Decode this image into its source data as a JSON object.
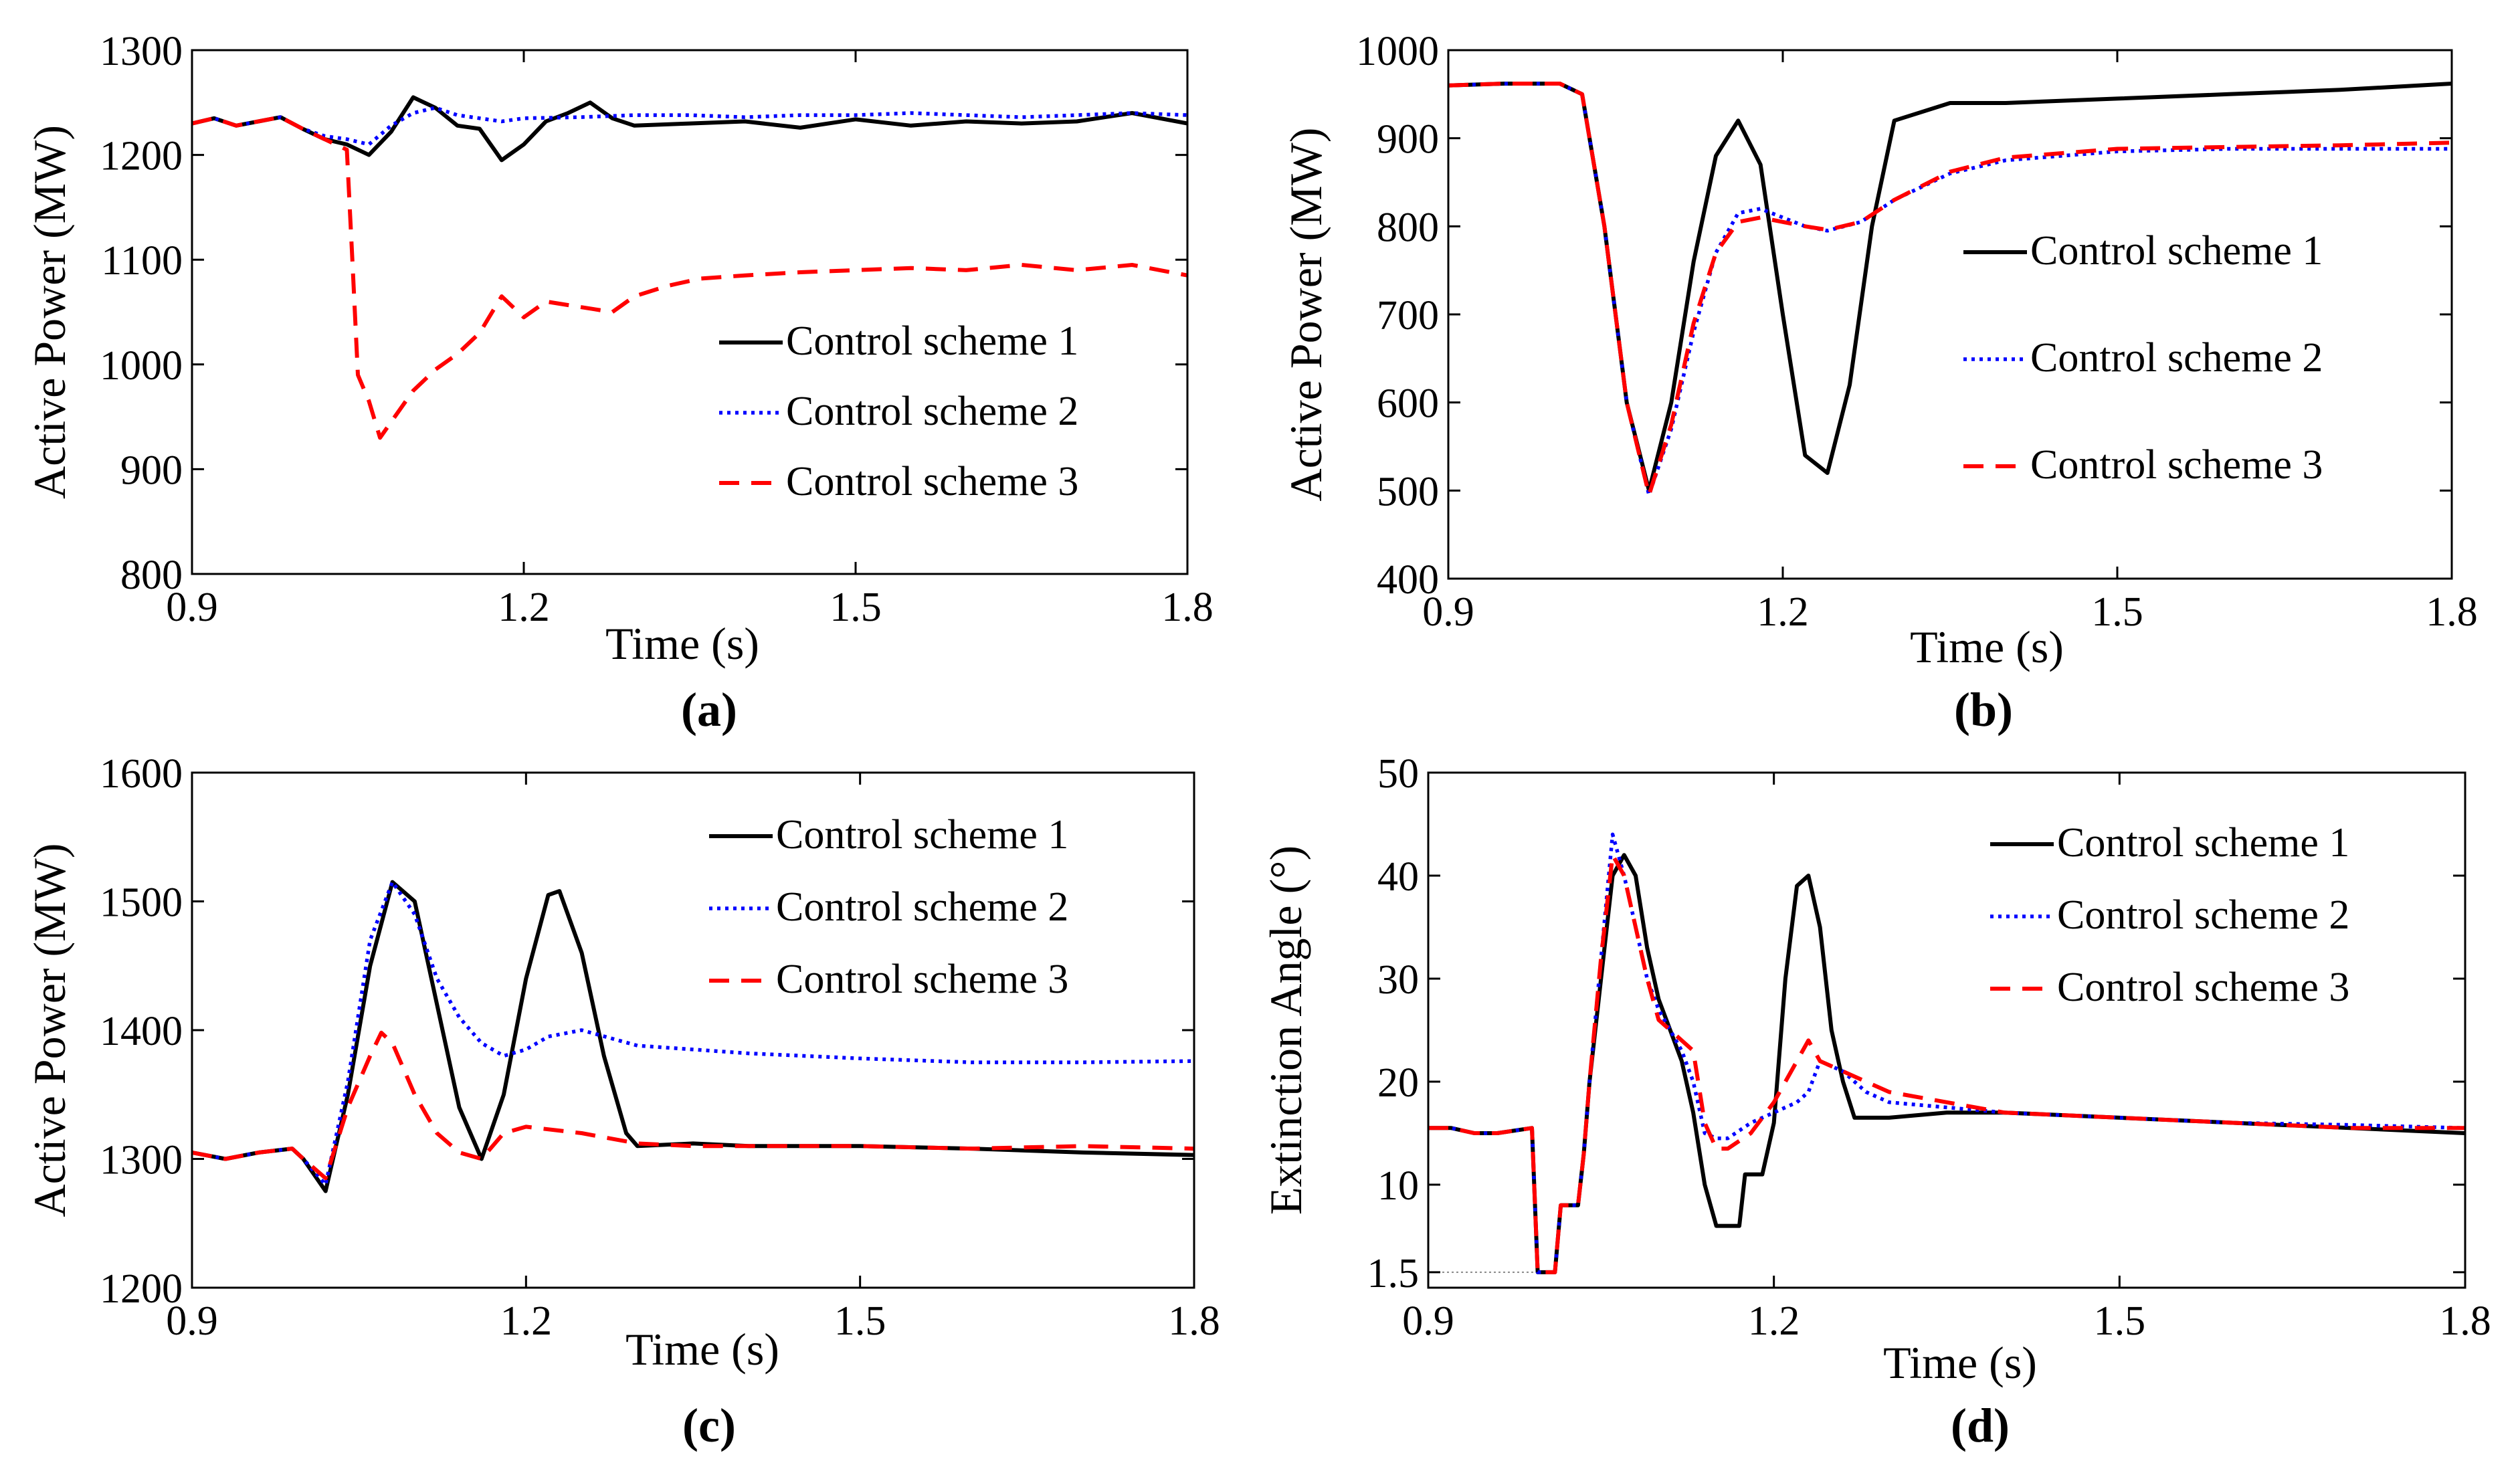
{
  "chart_data": [
    {
      "type": "line",
      "panel": "(a)",
      "xlabel": "Time (s)",
      "ylabel": "Active Power (MW)",
      "xlim": [
        0.9,
        1.8
      ],
      "ylim": [
        800,
        1300
      ],
      "xticks": [
        0.9,
        1.2,
        1.5,
        1.8
      ],
      "yticks": [
        800,
        900,
        1000,
        1100,
        1200,
        1300
      ],
      "legend_position": "right",
      "series": [
        {
          "name": "Control scheme 1",
          "color": "#000000",
          "style": "solid",
          "x": [
            0.9,
            0.92,
            0.94,
            0.96,
            0.98,
            1.0,
            1.02,
            1.04,
            1.06,
            1.08,
            1.1,
            1.12,
            1.14,
            1.16,
            1.18,
            1.2,
            1.22,
            1.24,
            1.26,
            1.28,
            1.3,
            1.35,
            1.4,
            1.45,
            1.5,
            1.55,
            1.6,
            1.65,
            1.7,
            1.75,
            1.8
          ],
          "y": [
            1230,
            1235,
            1228,
            1232,
            1236,
            1225,
            1215,
            1210,
            1200,
            1222,
            1255,
            1245,
            1228,
            1225,
            1195,
            1210,
            1232,
            1240,
            1250,
            1235,
            1228,
            1230,
            1232,
            1226,
            1234,
            1228,
            1232,
            1230,
            1232,
            1240,
            1230
          ]
        },
        {
          "name": "Control scheme 2",
          "color": "#0000ff",
          "style": "dotted",
          "x": [
            0.9,
            0.92,
            0.94,
            0.96,
            0.98,
            1.0,
            1.02,
            1.04,
            1.06,
            1.08,
            1.1,
            1.12,
            1.14,
            1.16,
            1.18,
            1.2,
            1.25,
            1.3,
            1.35,
            1.4,
            1.45,
            1.5,
            1.55,
            1.6,
            1.65,
            1.7,
            1.75,
            1.8
          ],
          "y": [
            1230,
            1235,
            1228,
            1232,
            1236,
            1225,
            1218,
            1215,
            1210,
            1228,
            1240,
            1245,
            1238,
            1235,
            1232,
            1235,
            1236,
            1238,
            1238,
            1236,
            1238,
            1238,
            1240,
            1238,
            1236,
            1238,
            1240,
            1238
          ]
        },
        {
          "name": "Control scheme 3",
          "color": "#ff0000",
          "style": "dashed",
          "x": [
            0.9,
            0.92,
            0.94,
            0.96,
            0.98,
            1.0,
            1.02,
            1.04,
            1.045,
            1.05,
            1.06,
            1.07,
            1.08,
            1.1,
            1.12,
            1.14,
            1.16,
            1.18,
            1.2,
            1.22,
            1.25,
            1.28,
            1.3,
            1.33,
            1.36,
            1.4,
            1.45,
            1.5,
            1.55,
            1.6,
            1.65,
            1.7,
            1.75,
            1.8
          ],
          "y": [
            1230,
            1235,
            1228,
            1232,
            1236,
            1225,
            1215,
            1205,
            1100,
            990,
            965,
            930,
            945,
            975,
            995,
            1010,
            1030,
            1065,
            1045,
            1060,
            1055,
            1050,
            1065,
            1075,
            1082,
            1085,
            1088,
            1090,
            1092,
            1090,
            1095,
            1090,
            1095,
            1085
          ]
        }
      ]
    },
    {
      "type": "line",
      "panel": "(b)",
      "xlabel": "Time (s)",
      "ylabel": "Active Power (MW)",
      "xlim": [
        0.9,
        1.8
      ],
      "ylim": [
        400,
        1000
      ],
      "xticks": [
        0.9,
        1.2,
        1.5,
        1.8
      ],
      "yticks": [
        400,
        500,
        600,
        700,
        800,
        900,
        1000
      ],
      "legend_position": "right",
      "series": [
        {
          "name": "Control scheme 1",
          "color": "#000000",
          "style": "solid",
          "x": [
            0.9,
            0.95,
            1.0,
            1.02,
            1.04,
            1.06,
            1.08,
            1.1,
            1.12,
            1.14,
            1.16,
            1.18,
            1.2,
            1.22,
            1.24,
            1.26,
            1.28,
            1.3,
            1.35,
            1.4,
            1.5,
            1.6,
            1.7,
            1.8
          ],
          "y": [
            960,
            962,
            962,
            950,
            800,
            600,
            500,
            600,
            760,
            880,
            920,
            870,
            700,
            540,
            520,
            620,
            800,
            920,
            940,
            940,
            945,
            950,
            955,
            962
          ]
        },
        {
          "name": "Control scheme 2",
          "color": "#0000ff",
          "style": "dotted",
          "x": [
            0.9,
            0.95,
            1.0,
            1.02,
            1.04,
            1.06,
            1.08,
            1.1,
            1.12,
            1.14,
            1.16,
            1.18,
            1.2,
            1.22,
            1.24,
            1.27,
            1.3,
            1.35,
            1.4,
            1.5,
            1.6,
            1.7,
            1.8
          ],
          "y": [
            960,
            962,
            962,
            950,
            800,
            600,
            495,
            570,
            680,
            770,
            815,
            820,
            810,
            800,
            795,
            805,
            830,
            860,
            875,
            885,
            888,
            888,
            888
          ]
        },
        {
          "name": "Control scheme 3",
          "color": "#ff0000",
          "style": "dashed",
          "x": [
            0.9,
            0.95,
            1.0,
            1.02,
            1.04,
            1.06,
            1.08,
            1.1,
            1.12,
            1.14,
            1.16,
            1.18,
            1.2,
            1.22,
            1.24,
            1.27,
            1.3,
            1.35,
            1.4,
            1.5,
            1.6,
            1.7,
            1.8
          ],
          "y": [
            960,
            962,
            962,
            950,
            800,
            600,
            495,
            575,
            690,
            770,
            805,
            810,
            805,
            800,
            796,
            805,
            830,
            862,
            878,
            888,
            890,
            892,
            895
          ]
        }
      ]
    },
    {
      "type": "line",
      "panel": "(c)",
      "xlabel": "Time (s)",
      "ylabel": "Active Power (MW)",
      "xlim": [
        0.9,
        1.8
      ],
      "ylim": [
        1200,
        1600
      ],
      "xticks": [
        0.9,
        1.2,
        1.5,
        1.8
      ],
      "yticks": [
        1200,
        1300,
        1400,
        1500,
        1600
      ],
      "legend_position": "top-right",
      "series": [
        {
          "name": "Control scheme 1",
          "color": "#000000",
          "style": "solid",
          "x": [
            0.9,
            0.93,
            0.96,
            0.99,
            1.0,
            1.02,
            1.04,
            1.06,
            1.08,
            1.1,
            1.12,
            1.14,
            1.16,
            1.18,
            1.2,
            1.22,
            1.23,
            1.25,
            1.27,
            1.29,
            1.3,
            1.35,
            1.4,
            1.5,
            1.6,
            1.7,
            1.8
          ],
          "y": [
            1305,
            1300,
            1305,
            1308,
            1300,
            1275,
            1350,
            1450,
            1515,
            1500,
            1420,
            1340,
            1300,
            1350,
            1440,
            1505,
            1508,
            1460,
            1380,
            1320,
            1310,
            1312,
            1310,
            1310,
            1308,
            1305,
            1303
          ]
        },
        {
          "name": "Control scheme 2",
          "color": "#0000ff",
          "style": "dotted",
          "x": [
            0.9,
            0.93,
            0.96,
            0.99,
            1.0,
            1.02,
            1.04,
            1.06,
            1.08,
            1.1,
            1.12,
            1.14,
            1.16,
            1.18,
            1.2,
            1.22,
            1.25,
            1.3,
            1.35,
            1.4,
            1.5,
            1.6,
            1.7,
            1.8
          ],
          "y": [
            1305,
            1300,
            1305,
            1308,
            1300,
            1280,
            1360,
            1470,
            1515,
            1490,
            1440,
            1410,
            1390,
            1380,
            1385,
            1395,
            1400,
            1388,
            1385,
            1382,
            1378,
            1375,
            1375,
            1376
          ]
        },
        {
          "name": "Control scheme 3",
          "color": "#ff0000",
          "style": "dashed",
          "x": [
            0.9,
            0.93,
            0.96,
            0.99,
            1.0,
            1.02,
            1.04,
            1.06,
            1.07,
            1.08,
            1.1,
            1.12,
            1.14,
            1.16,
            1.18,
            1.2,
            1.25,
            1.3,
            1.35,
            1.4,
            1.5,
            1.6,
            1.7,
            1.8
          ],
          "y": [
            1305,
            1300,
            1305,
            1308,
            1300,
            1285,
            1340,
            1380,
            1398,
            1390,
            1350,
            1320,
            1305,
            1300,
            1320,
            1325,
            1320,
            1312,
            1310,
            1310,
            1310,
            1308,
            1310,
            1308
          ]
        }
      ]
    },
    {
      "type": "line",
      "panel": "(d)",
      "xlabel": "Time (s)",
      "ylabel": "Extinction Angle (°)",
      "xlim": [
        0.9,
        1.8
      ],
      "ylim": [
        0,
        50
      ],
      "xticks": [
        0.9,
        1.2,
        1.5,
        1.8
      ],
      "yticks": [
        1.5,
        10,
        20,
        30,
        40,
        50
      ],
      "legend_position": "top-right",
      "series": [
        {
          "name": "Control scheme 1",
          "color": "#000000",
          "style": "solid",
          "x": [
            0.9,
            0.92,
            0.94,
            0.96,
            0.99,
            0.995,
            1.01,
            1.015,
            1.03,
            1.035,
            1.04,
            1.05,
            1.06,
            1.07,
            1.08,
            1.09,
            1.1,
            1.11,
            1.12,
            1.13,
            1.14,
            1.15,
            1.17,
            1.175,
            1.19,
            1.2,
            1.21,
            1.22,
            1.23,
            1.24,
            1.25,
            1.26,
            1.27,
            1.3,
            1.35,
            1.4,
            1.5,
            1.6,
            1.7,
            1.8
          ],
          "y": [
            15.5,
            15.5,
            15,
            15,
            15.5,
            1.5,
            1.5,
            8,
            8,
            13,
            20,
            30,
            40,
            42,
            40,
            33,
            28,
            25,
            22,
            17,
            10,
            6,
            6,
            11,
            11,
            16,
            30,
            39,
            40,
            35,
            25,
            20,
            16.5,
            16.5,
            17,
            17,
            16.5,
            16,
            15.5,
            15
          ]
        },
        {
          "name": "Control scheme 2",
          "color": "#0000ff",
          "style": "dotted",
          "x": [
            0.9,
            0.92,
            0.94,
            0.96,
            0.99,
            0.995,
            1.01,
            1.015,
            1.03,
            1.035,
            1.04,
            1.05,
            1.06,
            1.07,
            1.08,
            1.09,
            1.1,
            1.11,
            1.12,
            1.13,
            1.14,
            1.15,
            1.16,
            1.18,
            1.2,
            1.22,
            1.23,
            1.24,
            1.26,
            1.28,
            1.3,
            1.35,
            1.4,
            1.5,
            1.6,
            1.7,
            1.8
          ],
          "y": [
            15.5,
            15.5,
            15,
            15,
            15.5,
            1.5,
            1.5,
            8,
            8,
            13,
            20,
            32,
            44,
            40,
            35,
            30,
            27,
            25,
            23,
            20,
            15,
            14.5,
            14.5,
            16,
            17,
            18,
            19,
            22,
            21,
            19,
            18,
            17.5,
            17,
            16.5,
            16,
            15.8,
            15.5
          ]
        },
        {
          "name": "Control scheme 3",
          "color": "#ff0000",
          "style": "dashed",
          "x": [
            0.9,
            0.92,
            0.94,
            0.96,
            0.99,
            0.995,
            1.01,
            1.015,
            1.03,
            1.035,
            1.04,
            1.05,
            1.06,
            1.07,
            1.08,
            1.09,
            1.1,
            1.11,
            1.12,
            1.13,
            1.14,
            1.15,
            1.16,
            1.18,
            1.2,
            1.22,
            1.23,
            1.24,
            1.26,
            1.28,
            1.3,
            1.35,
            1.4,
            1.5,
            1.6,
            1.7,
            1.8
          ],
          "y": [
            15.5,
            15.5,
            15,
            15,
            15.5,
            1.5,
            1.5,
            8,
            8,
            13,
            20,
            32,
            42,
            40,
            35,
            30,
            26,
            25,
            24,
            23,
            16,
            13.5,
            13.5,
            15,
            18,
            22,
            24,
            22,
            21,
            20,
            19,
            18,
            17,
            16.5,
            16,
            15.5,
            15.5
          ]
        }
      ]
    }
  ]
}
